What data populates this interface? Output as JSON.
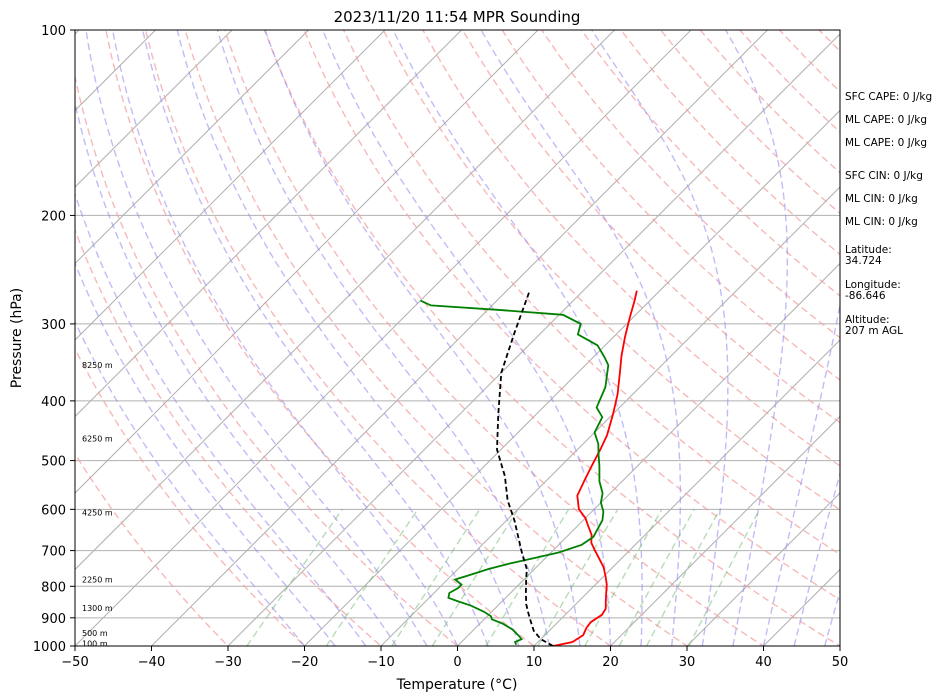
{
  "chart_data": {
    "type": "line",
    "title": "2023/11/20 11:54 MPR Sounding",
    "xlabel": "Temperature (°C)",
    "ylabel": "Pressure (hPa)",
    "xlim": [
      -50,
      50
    ],
    "ylim": [
      1000,
      100
    ],
    "y_scale": "log",
    "skew": true,
    "grid": true,
    "x_ticks": [
      -50,
      -40,
      -30,
      -20,
      -10,
      0,
      10,
      20,
      30,
      40,
      50
    ],
    "y_ticks": [
      100,
      200,
      300,
      400,
      500,
      600,
      700,
      800,
      900,
      1000
    ],
    "height_labels": [
      {
        "p": 350,
        "label": "8250 m"
      },
      {
        "p": 460,
        "label": "6250 m"
      },
      {
        "p": 607,
        "label": "4250 m"
      },
      {
        "p": 780,
        "label": "2250 m"
      },
      {
        "p": 868,
        "label": "1300 m"
      },
      {
        "p": 952,
        "label": "500 m"
      },
      {
        "p": 990,
        "label": "100 m"
      }
    ],
    "series": [
      {
        "color": "#ff0000",
        "x": [
          12.5,
          14.5,
          15.0,
          14.5,
          14.3,
          14.8,
          14.5,
          13.5,
          12.5,
          11.5,
          10.2,
          8.8,
          7.0,
          5.5,
          4.0,
          3.0,
          1.5,
          0.0,
          -2.0,
          -4.0,
          -5.0,
          -6.0,
          -7.0,
          -8.0,
          -10.0,
          -12.0,
          -14.5,
          -16.5,
          -18.5,
          -20.5,
          -22.0,
          -23.0
        ],
        "p": [
          1000,
          985,
          960,
          935,
          915,
          890,
          870,
          845,
          820,
          795,
          770,
          745,
          720,
          700,
          680,
          660,
          640,
          620,
          600,
          570,
          540,
          510,
          480,
          455,
          420,
          390,
          360,
          338,
          315,
          292,
          275,
          265
        ]
      },
      {
        "color": "#008000",
        "x": [
          7.5,
          7.0,
          7.5,
          6.5,
          5.0,
          3.0,
          1.0,
          0.5,
          -1.0,
          -3.5,
          -6.0,
          -7.5,
          -8.0,
          -7.5,
          -7.5,
          -8.5,
          -9.0,
          -8.0,
          -6.0,
          -4.0,
          -1.5,
          1.0,
          3.0,
          3.5,
          3.0,
          2.5,
          1.5,
          0.0,
          -1.0,
          -3.0,
          -5.0,
          -6.5,
          -8.0,
          -10.0,
          -11.0,
          -13.0,
          -14.5,
          -17.0,
          -18.5,
          -21.0,
          -25.0,
          -26.0,
          -29.5,
          -38.0,
          -48.0,
          -50.0
        ],
        "p": [
          995,
          985,
          975,
          960,
          940,
          920,
          905,
          895,
          880,
          860,
          845,
          835,
          820,
          805,
          795,
          785,
          780,
          770,
          750,
          735,
          720,
          705,
          685,
          665,
          645,
          625,
          605,
          585,
          565,
          540,
          510,
          490,
          470,
          450,
          425,
          410,
          380,
          350,
          340,
          325,
          312,
          300,
          290,
          285,
          280,
          275
        ]
      },
      {
        "color": "#000000",
        "x": [
          12.5,
          10.0,
          8.0,
          6.5,
          5.0,
          3.5,
          2.0,
          0.5,
          -1.0,
          -3.5,
          -6.0,
          -9.0,
          -12.5,
          -16.0,
          -20.5,
          -25.0,
          -30.0,
          -33.5,
          -37.0
        ],
        "p": [
          1000,
          975,
          945,
          915,
          885,
          855,
          820,
          785,
          750,
          710,
          670,
          625,
          580,
          530,
          480,
          420,
          360,
          310,
          265
        ]
      }
    ]
  },
  "info_panel": {
    "sfc_cape": "SFC CAPE: 0 J/kg",
    "ml_cape_1": "ML CAPE: 0 J/kg",
    "ml_cape_2": "ML CAPE: 0 J/kg",
    "sfc_cin": "SFC CIN: 0 J/kg",
    "ml_cin_1": "ML CIN: 0 J/kg",
    "ml_cin_2": "ML CIN: 0 J/kg",
    "latitude_label": "Latitude:",
    "latitude_value": "34.724",
    "longitude_label": "Longitude:",
    "longitude_value": "-86.646",
    "altitude_label": "Altitude:",
    "altitude_value": "207 m AGL"
  }
}
